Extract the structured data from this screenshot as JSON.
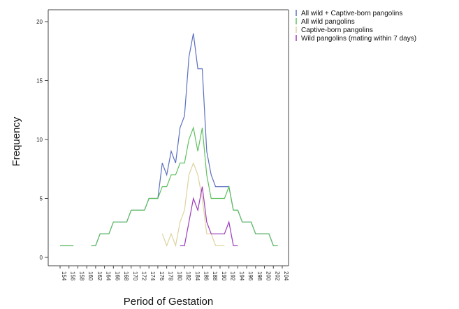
{
  "chart_data": {
    "type": "line",
    "title": "",
    "xlabel": "Period of Gestation",
    "ylabel": "Frequency",
    "xlim": [
      154,
      204
    ],
    "ylim": [
      0,
      20
    ],
    "x_ticks": [
      "154",
      "156",
      "158",
      "160",
      "162",
      "164",
      "166",
      "168",
      "170",
      "172",
      "174",
      "176",
      "178",
      "180",
      "182",
      "184",
      "186",
      "188",
      "190",
      "192",
      "194",
      "196",
      "198",
      "200",
      "202",
      "204"
    ],
    "y_ticks": [
      0,
      5,
      10,
      15,
      20
    ],
    "grid": false,
    "legend_position": "top-right outside",
    "series": [
      {
        "name": "All wild + Captive-born pangolins",
        "color": "#5b70c0",
        "segments": [
          [
            [
              154,
              1
            ],
            [
              156,
              1
            ],
            [
              157,
              1
            ]
          ],
          [
            [
              161,
              1
            ],
            [
              162,
              1
            ],
            [
              163,
              2
            ],
            [
              164,
              2
            ],
            [
              165,
              2
            ],
            [
              166,
              3
            ],
            [
              167,
              3
            ],
            [
              168,
              3
            ],
            [
              169,
              3
            ],
            [
              170,
              4
            ],
            [
              171,
              4
            ],
            [
              172,
              4
            ],
            [
              173,
              4
            ],
            [
              174,
              5
            ],
            [
              175,
              5
            ],
            [
              176,
              5
            ],
            [
              177,
              8
            ],
            [
              178,
              7
            ],
            [
              179,
              9
            ],
            [
              180,
              8
            ],
            [
              181,
              11
            ],
            [
              182,
              12
            ],
            [
              183,
              17
            ],
            [
              184,
              19
            ],
            [
              185,
              16
            ],
            [
              186,
              16
            ],
            [
              187,
              9
            ],
            [
              188,
              7
            ],
            [
              189,
              6
            ],
            [
              190,
              6
            ],
            [
              191,
              6
            ],
            [
              192,
              6
            ],
            [
              193,
              4
            ],
            [
              194,
              4
            ],
            [
              195,
              3
            ],
            [
              196,
              3
            ],
            [
              197,
              3
            ],
            [
              198,
              2
            ],
            [
              199,
              2
            ],
            [
              200,
              2
            ],
            [
              201,
              2
            ],
            [
              202,
              1
            ],
            [
              203,
              1
            ]
          ]
        ]
      },
      {
        "name": "All wild pangolins",
        "color": "#5fc15f",
        "segments": [
          [
            [
              154,
              1
            ],
            [
              156,
              1
            ],
            [
              157,
              1
            ]
          ],
          [
            [
              161,
              1
            ],
            [
              162,
              1
            ],
            [
              163,
              2
            ],
            [
              164,
              2
            ],
            [
              165,
              2
            ],
            [
              166,
              3
            ],
            [
              167,
              3
            ],
            [
              168,
              3
            ],
            [
              169,
              3
            ],
            [
              170,
              4
            ],
            [
              171,
              4
            ],
            [
              172,
              4
            ],
            [
              173,
              4
            ],
            [
              174,
              5
            ],
            [
              175,
              5
            ],
            [
              176,
              5
            ],
            [
              177,
              6
            ],
            [
              178,
              6
            ],
            [
              179,
              7
            ],
            [
              180,
              7
            ],
            [
              181,
              8
            ],
            [
              182,
              8
            ],
            [
              183,
              10
            ],
            [
              184,
              11
            ],
            [
              185,
              9
            ],
            [
              186,
              11
            ],
            [
              187,
              7
            ],
            [
              188,
              5
            ],
            [
              189,
              5
            ],
            [
              190,
              5
            ],
            [
              191,
              5
            ],
            [
              192,
              6
            ],
            [
              193,
              4
            ],
            [
              194,
              4
            ],
            [
              195,
              3
            ],
            [
              196,
              3
            ],
            [
              197,
              3
            ],
            [
              198,
              2
            ],
            [
              199,
              2
            ],
            [
              200,
              2
            ],
            [
              201,
              2
            ],
            [
              202,
              1
            ],
            [
              203,
              1
            ]
          ]
        ]
      },
      {
        "name": "Captive-born pangolins",
        "color": "#dcd3a0",
        "segments": [
          [
            [
              177,
              2
            ],
            [
              178,
              1
            ],
            [
              179,
              2
            ],
            [
              180,
              1
            ],
            [
              181,
              3
            ],
            [
              182,
              4
            ],
            [
              183,
              7
            ],
            [
              184,
              8
            ],
            [
              185,
              7
            ],
            [
              186,
              5
            ],
            [
              187,
              2
            ],
            [
              188,
              2
            ],
            [
              189,
              1
            ],
            [
              190,
              1
            ],
            [
              191,
              1
            ]
          ]
        ]
      },
      {
        "name": "Wild pangolins (mating within 7 days)",
        "color": "#9b3ab8",
        "segments": [
          [
            [
              181,
              1
            ],
            [
              182,
              1
            ],
            [
              183,
              3
            ],
            [
              184,
              5
            ],
            [
              185,
              4
            ],
            [
              186,
              6
            ],
            [
              187,
              3
            ],
            [
              188,
              2
            ],
            [
              189,
              2
            ],
            [
              190,
              2
            ],
            [
              191,
              2
            ],
            [
              192,
              3
            ],
            [
              193,
              1
            ],
            [
              194,
              1
            ]
          ]
        ]
      }
    ]
  }
}
